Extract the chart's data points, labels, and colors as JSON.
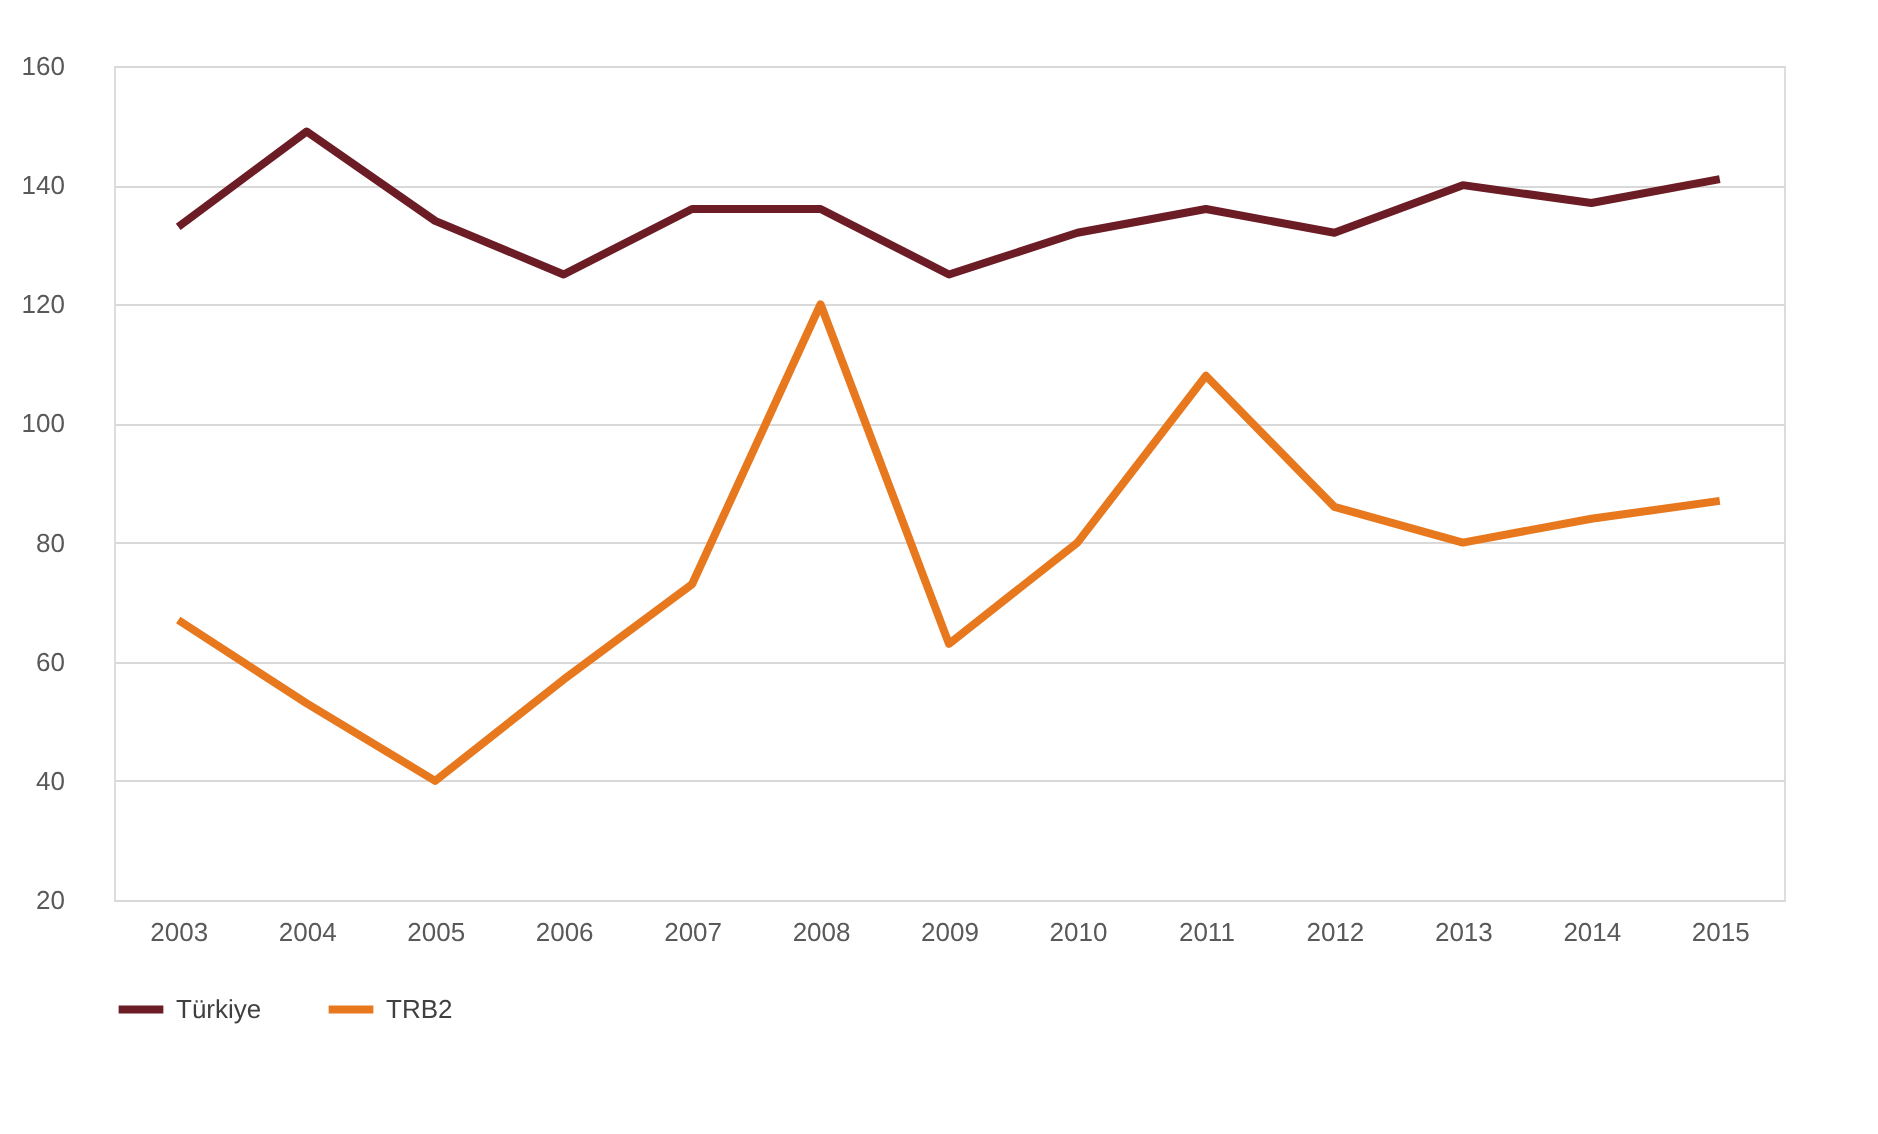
{
  "chart_data": {
    "type": "line",
    "categories": [
      "2003",
      "2004",
      "2005",
      "2006",
      "2007",
      "2008",
      "2009",
      "2010",
      "2011",
      "2012",
      "2013",
      "2014",
      "2015"
    ],
    "series": [
      {
        "name": "Türkiye",
        "color": "#6b1c24",
        "values": [
          133,
          149,
          134,
          125,
          136,
          136,
          125,
          132,
          136,
          132,
          140,
          137,
          141
        ]
      },
      {
        "name": "TRB2",
        "color": "#e8781e",
        "values": [
          67,
          53,
          40,
          57,
          73,
          120,
          63,
          80,
          108,
          86,
          80,
          84,
          87
        ]
      }
    ],
    "ylim": [
      20,
      160
    ],
    "yticks": [
      20,
      40,
      60,
      80,
      100,
      120,
      140,
      160
    ],
    "grid": "y",
    "legend": "bottom",
    "marker": "none",
    "line_style": "solid"
  }
}
